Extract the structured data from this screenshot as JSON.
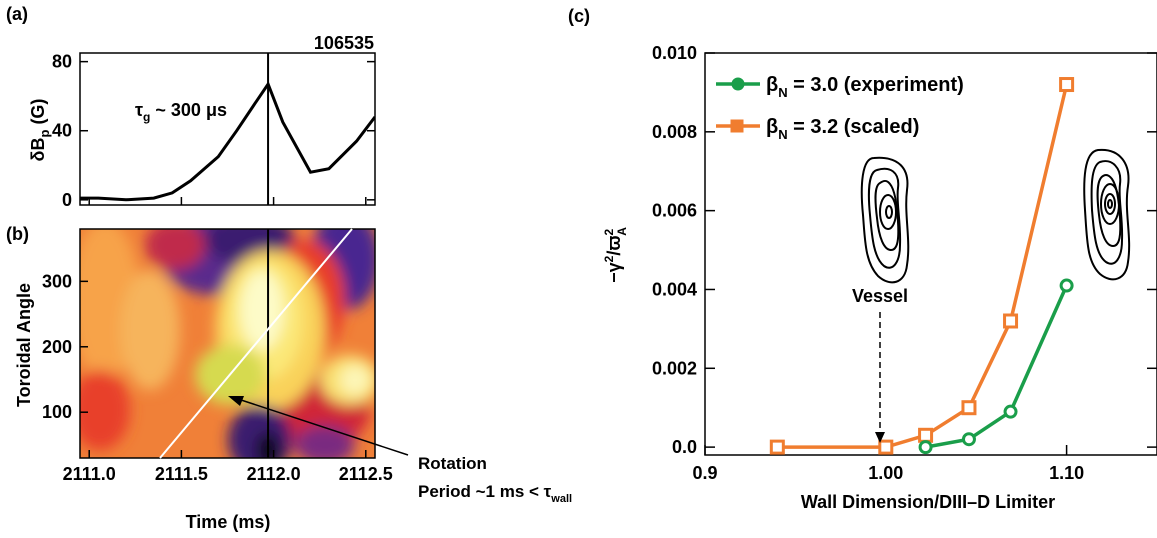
{
  "chart_data": [
    {
      "panel": "(a)",
      "type": "line",
      "title": "106535",
      "ylabel": "δBₚ (G)",
      "xlabel": "",
      "xlim": [
        2110.95,
        2112.55
      ],
      "ylim": [
        -3,
        85
      ],
      "yticks": [
        "0",
        "40",
        "80"
      ],
      "grid": false,
      "annotation": "τg ~ 300 μs",
      "x": [
        2110.95,
        2111.05,
        2111.2,
        2111.35,
        2111.45,
        2111.55,
        2111.7,
        2111.8,
        2111.9,
        2111.97,
        2112.05,
        2112.2,
        2112.3,
        2112.45,
        2112.55
      ],
      "y": [
        1,
        1,
        0,
        1,
        4,
        11,
        25,
        40,
        56,
        67,
        45,
        16,
        18,
        34,
        48
      ],
      "vline": 2111.97
    },
    {
      "panel": "(b)",
      "type": "heatmap",
      "xlabel": "Time (ms)",
      "ylabel": "Toroidal Angle",
      "xticks": [
        "2111.0",
        "2111.5",
        "2112.0",
        "2112.5"
      ],
      "xtick_values": [
        2111.0,
        2111.5,
        2112.0,
        2112.5
      ],
      "yticks": [
        "100",
        "200",
        "300"
      ],
      "ytick_values": [
        100,
        200,
        300
      ],
      "xlim": [
        2110.95,
        2112.55
      ],
      "ylim": [
        30,
        380
      ],
      "vline": 2111.97,
      "annotation_line1": "Rotation",
      "annotation_line2_prefix": "Period ~1 ms < τ",
      "annotation_line2_sub": "wall"
    },
    {
      "panel": "(c)",
      "type": "line",
      "xlabel": "Wall Dimension/DIII–D Limiter",
      "ylabel": "−γ²/ϖ²A",
      "xlim": [
        0.9,
        1.15
      ],
      "ylim": [
        -0.0002,
        0.01
      ],
      "xticks": [
        "0.9",
        "1.00",
        "1.10"
      ],
      "xtick_values": [
        0.9,
        1.0,
        1.1
      ],
      "yticks": [
        "0.0",
        "0.002",
        "0.004",
        "0.006",
        "0.008",
        "0.010"
      ],
      "ytick_values": [
        0.0,
        0.002,
        0.004,
        0.006,
        0.008,
        0.01
      ],
      "grid": false,
      "legend_position": "top-left",
      "annotation": "Vessel",
      "series": [
        {
          "name": "βN = 3.0 (experiment)",
          "legend_greek": "β",
          "legend_sub": "N",
          "legend_rest": " = 3.0 (experiment)",
          "color": "#1a9e4a",
          "marker": "circle",
          "x": [
            1.022,
            1.046,
            1.069,
            1.1
          ],
          "y": [
            0.0,
            0.0002,
            0.0009,
            0.0041
          ]
        },
        {
          "name": "βN = 3.2 (scaled)",
          "legend_greek": "β",
          "legend_sub": "N",
          "legend_rest": " = 3.2 (scaled)",
          "color": "#f07d2f",
          "marker": "square",
          "x": [
            0.94,
            1.0,
            1.022,
            1.046,
            1.069,
            1.1
          ],
          "y": [
            0.0,
            0.0,
            0.0003,
            0.001,
            0.0032,
            0.0092
          ]
        }
      ]
    }
  ]
}
